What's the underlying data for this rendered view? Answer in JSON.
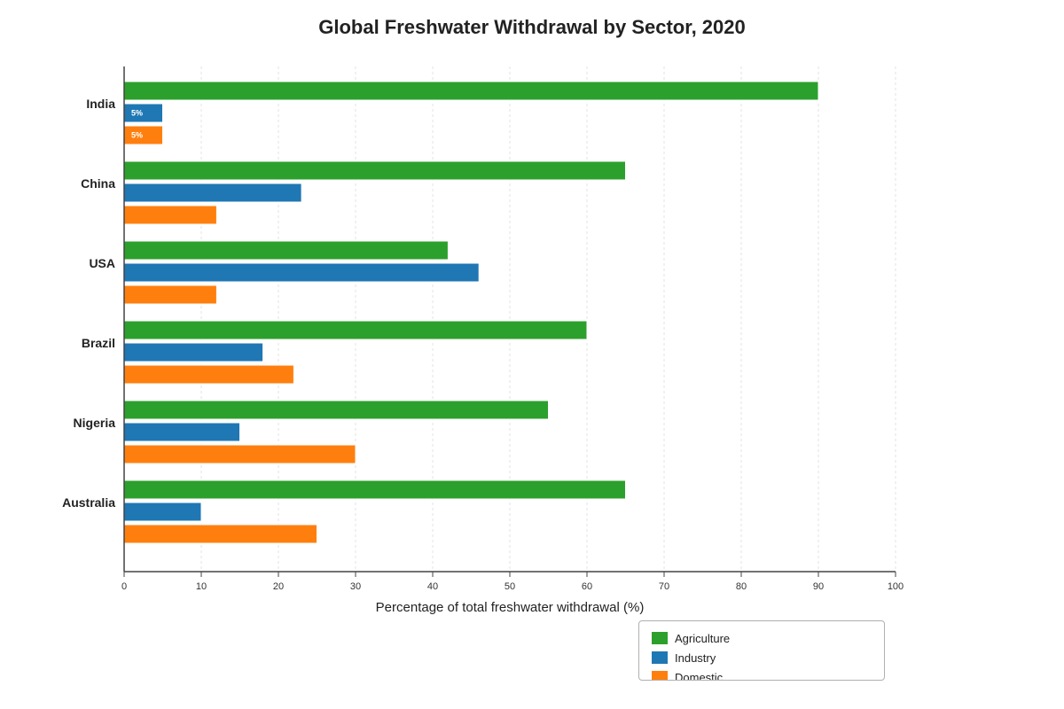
{
  "chart_data": {
    "type": "bar",
    "orientation": "horizontal",
    "title": "Global Freshwater Withdrawal by Sector, 2020",
    "xlabel": "Percentage of total freshwater withdrawal (%)",
    "ylabel": "",
    "xlim": [
      0,
      100
    ],
    "x_ticks": [
      "0",
      "10",
      "20",
      "30",
      "40",
      "50",
      "60",
      "70",
      "80",
      "90",
      "100"
    ],
    "grid": "vertical dashed",
    "legend_position": "bottom-right",
    "categories": [
      "India",
      "China",
      "USA",
      "Brazil",
      "Nigeria",
      "Australia"
    ],
    "series": [
      {
        "name": "Agriculture",
        "color": "#2ca02c",
        "values": [
          90,
          65,
          42,
          60,
          55,
          65
        ]
      },
      {
        "name": "Industry",
        "color": "#1f77b4",
        "values": [
          5,
          23,
          46,
          18,
          15,
          10
        ]
      },
      {
        "name": "Domestic",
        "color": "#ff7f0e",
        "values": [
          5,
          12,
          12,
          22,
          30,
          25
        ]
      }
    ],
    "data_labels": [
      {
        "category": "India",
        "series": "Industry",
        "text": "5%"
      },
      {
        "category": "India",
        "series": "Domestic",
        "text": "5%"
      }
    ]
  }
}
